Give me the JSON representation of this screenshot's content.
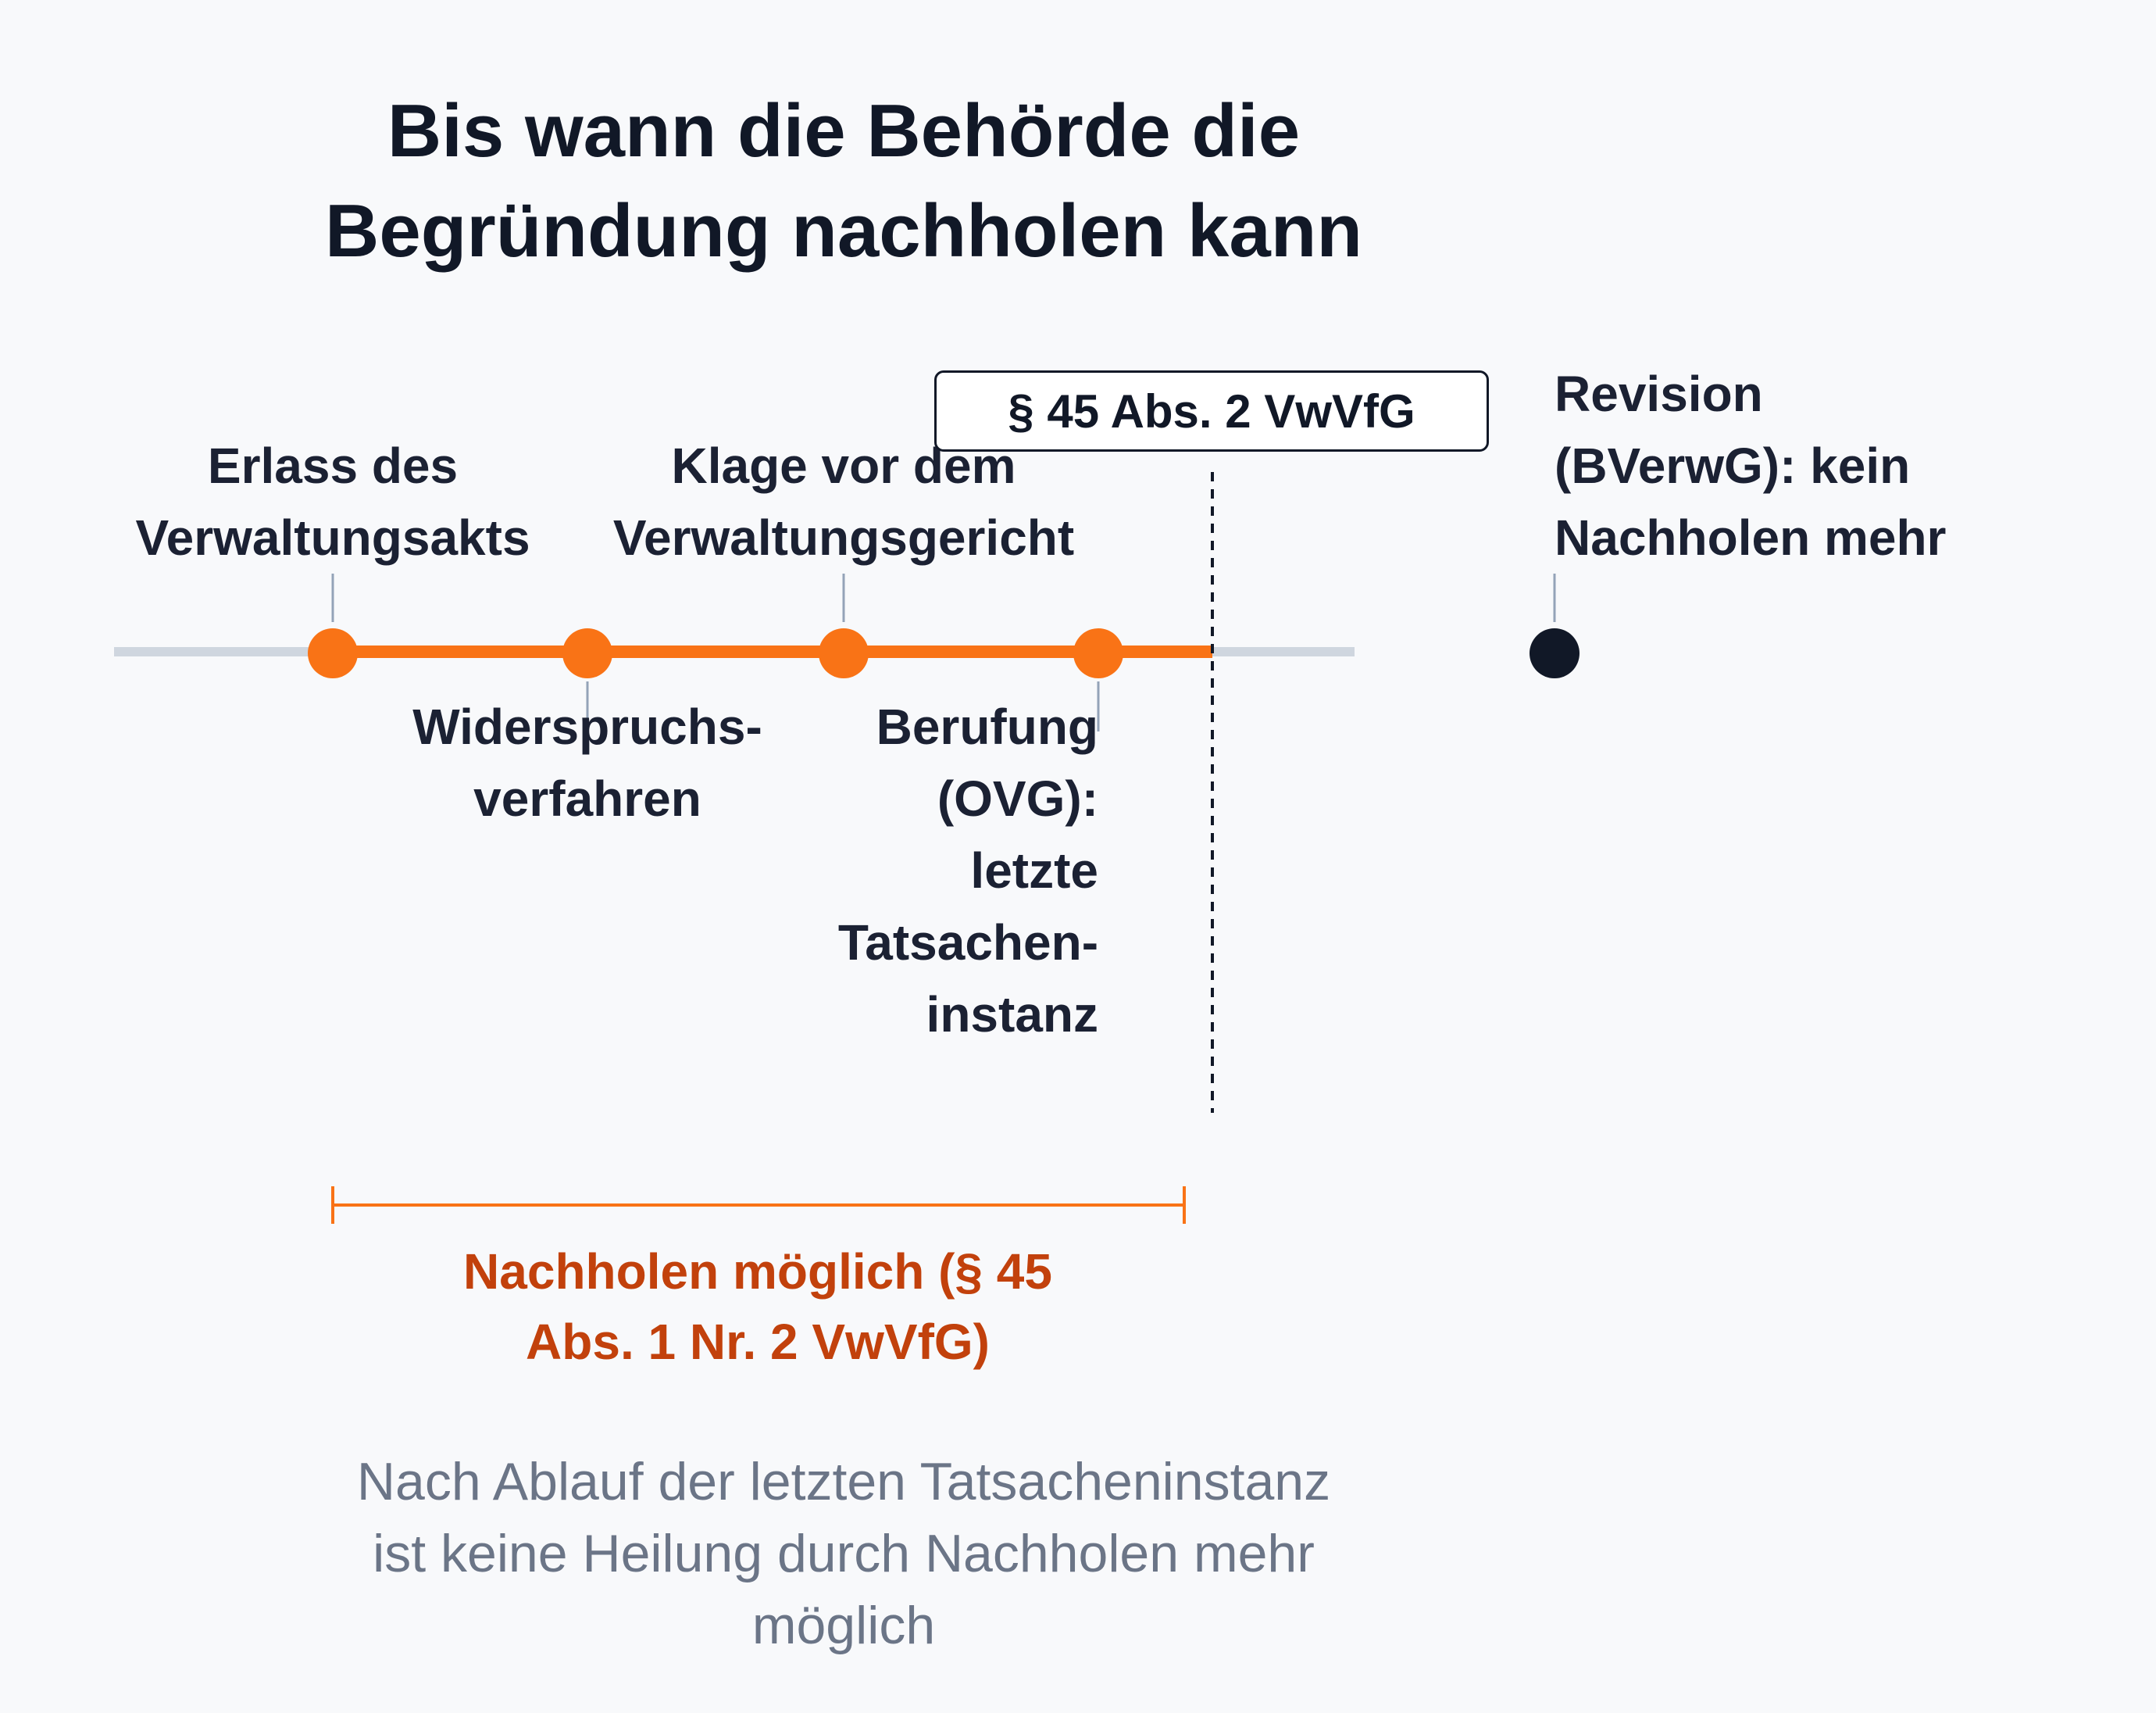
{
  "title": [
    "Bis wann die Behörde die",
    "Begründung nachholen kann"
  ],
  "milestones": [
    {
      "lines": [
        "Erlass des",
        "Verwaltungsakts"
      ]
    },
    {
      "lines": [
        "Widerspruchs-",
        "verfahren"
      ]
    },
    {
      "lines": [
        "Klage vor dem",
        "Verwaltungsgericht"
      ]
    },
    {
      "lines": [
        "Berufung",
        "(OVG):",
        "letzte",
        "Tatsachen-",
        "instanz"
      ]
    }
  ],
  "revision": {
    "lines": [
      "Revision",
      "(BVerwG): kein",
      "Nachholen mehr"
    ]
  },
  "cutoff_label": "§ 45 Abs. 2 VwVfG",
  "range_label": [
    "Nachholen möglich (§ 45",
    "Abs. 1 Nr. 2 VwVfG)"
  ],
  "footnote": [
    "Nach Ablauf der letzten Tatsacheninstanz",
    "ist keine Heilung durch Nachholen mehr",
    "möglich"
  ],
  "colors": {
    "active": "#f97316",
    "active_text": "#c2410c",
    "inactive_track": "#cfd6df",
    "endpoint": "#111827",
    "connector": "#94a3b8",
    "footnote": "#6b7587"
  }
}
